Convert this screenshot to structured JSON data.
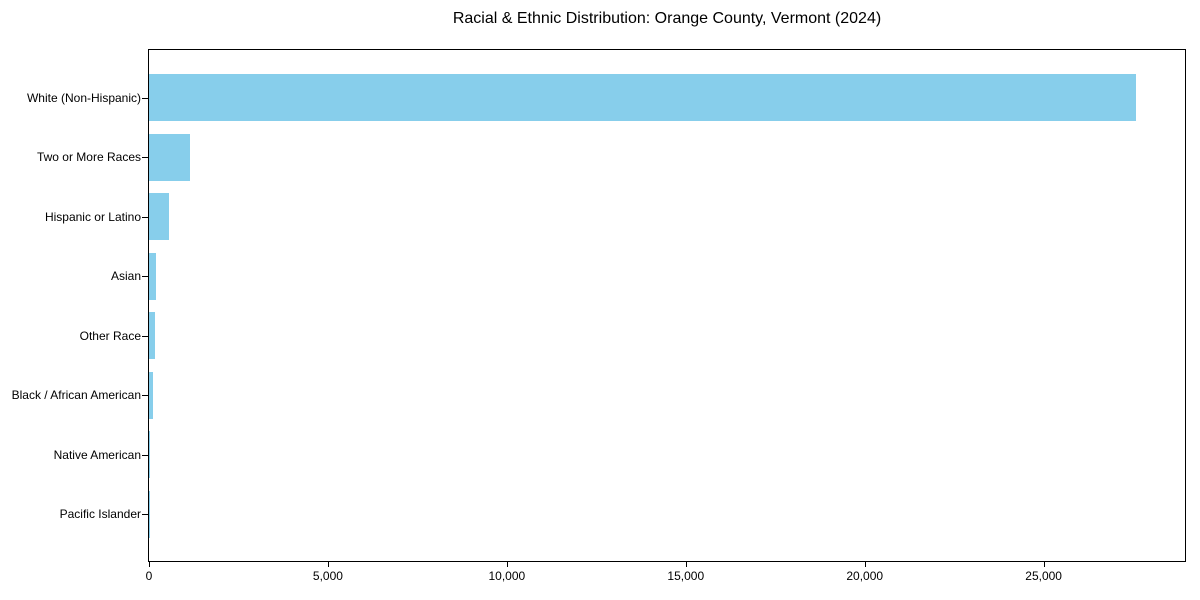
{
  "chart_data": {
    "type": "bar",
    "orientation": "horizontal",
    "title": "Racial & Ethnic Distribution: Orange County, Vermont (2024)",
    "xlabel": "",
    "ylabel": "",
    "categories": [
      "White (Non-Hispanic)",
      "Two or More Races",
      "Hispanic or Latino",
      "Asian",
      "Other Race",
      "Black / African American",
      "Native American",
      "Pacific Islander"
    ],
    "values": [
      27590,
      1150,
      560,
      190,
      160,
      115,
      35,
      8
    ],
    "xlim": [
      0,
      28950
    ],
    "x_ticks": [
      0,
      5000,
      10000,
      15000,
      20000,
      25000
    ],
    "x_tick_labels": [
      "0",
      "5,000",
      "10,000",
      "15,000",
      "20,000",
      "25,000"
    ],
    "bar_color": "#87CEEB",
    "frame_color": "#000000",
    "text_color": "#000000",
    "grid": false,
    "legend": null
  }
}
